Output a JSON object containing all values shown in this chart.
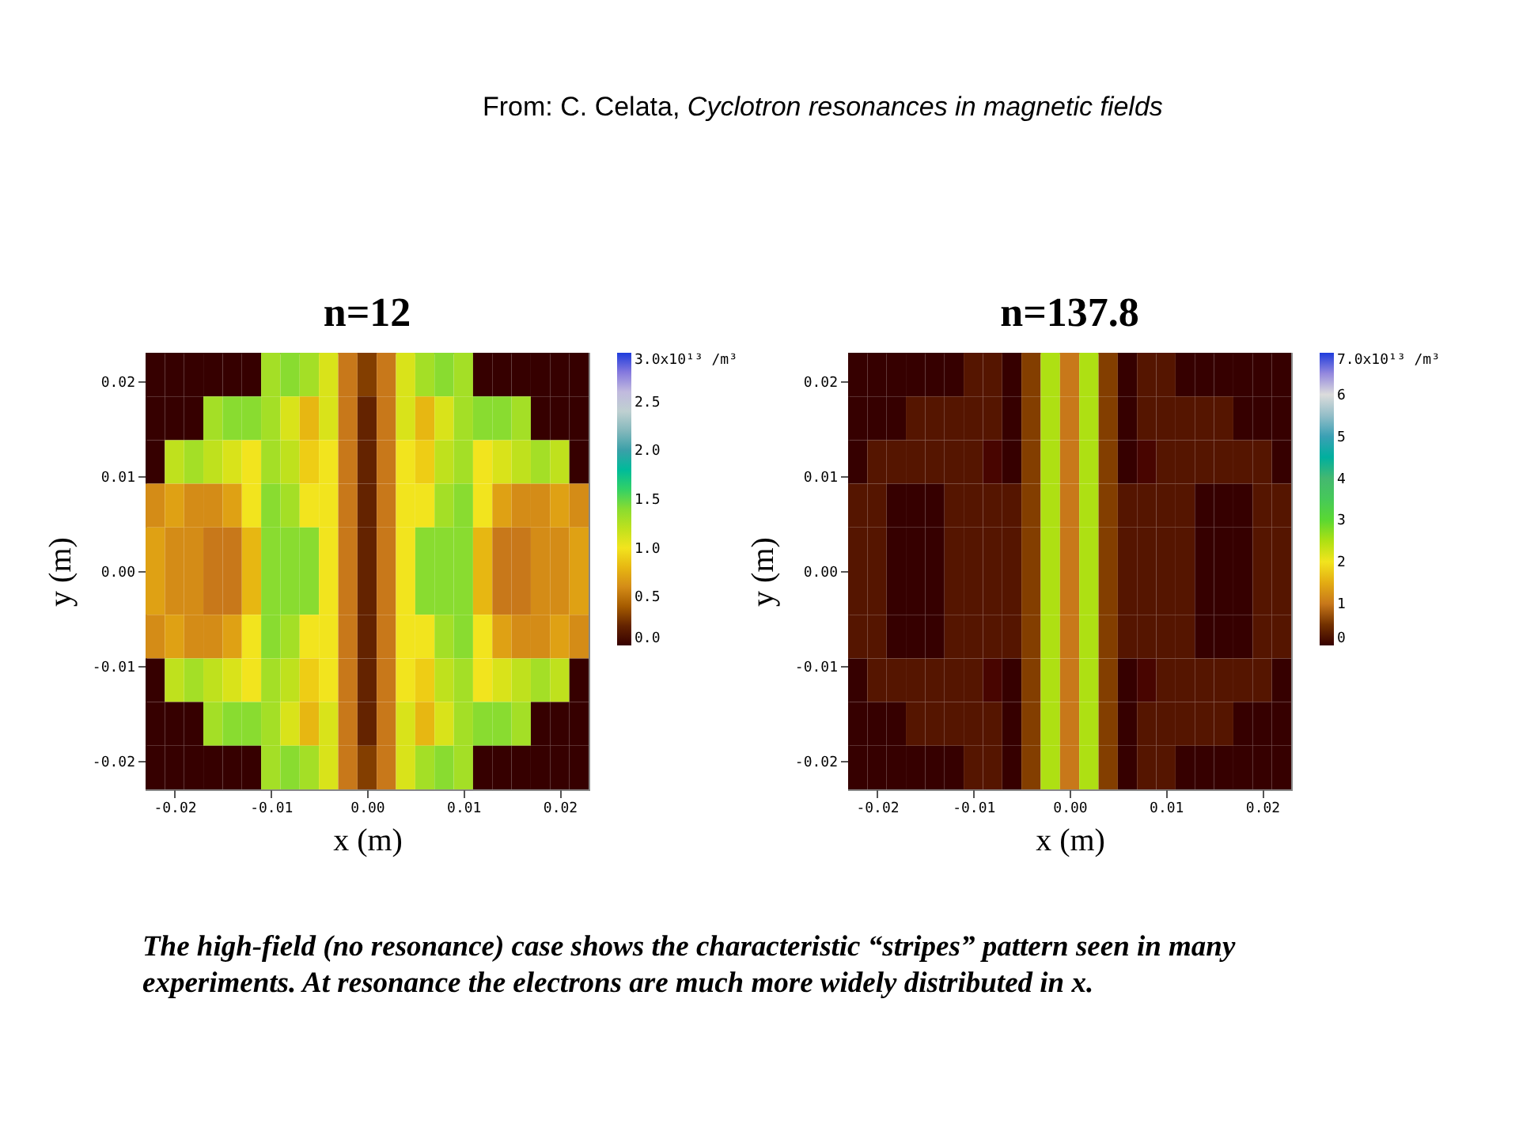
{
  "chart_data": [
    {
      "type": "heatmap",
      "title": "n=12",
      "xlabel": "x (m)",
      "ylabel": "y (m)",
      "annotations": [
        "From: C. Celata,",
        "Cyclotron resonances in magnetic fields",
        "The high-field (no resonance) case shows the characteristic “stripes” pattern seen in many experiments. At resonance the electrons are much more widely distributed in x."
      ],
      "xlim": [
        -0.023,
        0.023
      ],
      "ylim": [
        -0.023,
        0.023
      ],
      "xticks": [
        -0.02,
        -0.01,
        {
          "value": 0,
          "label": "0.00"
        },
        0.01,
        0.02
      ],
      "yticks": [
        -0.02,
        -0.01,
        {
          "value": 0,
          "label": "0.00"
        },
        0.01,
        0.02
      ],
      "clim": [
        0,
        3
      ],
      "cticks": [
        {
          "value": 0,
          "label": "0.0"
        },
        0.5,
        {
          "value": 1,
          "label": "1.0"
        },
        1.5,
        {
          "value": 2,
          "label": "2.0"
        },
        2.5,
        {
          "value": 3,
          "label": "3.0x10¹³ /m³"
        }
      ],
      "colors": [
        "#000000",
        "#c8781a",
        "#f2e41e",
        "#6ad83c",
        "#3aa0a8",
        "#dcdcdc",
        "#1e3cdc"
      ],
      "cells": [
        [
          0,
          0,
          0,
          0,
          0,
          0,
          1.3,
          1.4,
          1.3,
          1.1,
          0.5,
          0.3,
          0.5,
          1.1,
          1.3,
          1.4,
          1.3,
          0,
          0,
          0,
          0,
          0,
          0
        ],
        [
          0,
          0,
          0,
          1.3,
          1.4,
          1.4,
          1.3,
          1.1,
          0.8,
          1.1,
          0.5,
          0.2,
          0.5,
          1.1,
          0.8,
          1.1,
          1.3,
          1.4,
          1.4,
          1.3,
          0,
          0,
          0
        ],
        [
          0,
          1.2,
          1.3,
          1.2,
          1.1,
          1.0,
          1.3,
          1.2,
          0.9,
          1.0,
          0.5,
          0.2,
          0.5,
          1.0,
          0.9,
          1.2,
          1.3,
          1.0,
          1.1,
          1.2,
          1.3,
          1.2,
          0
        ],
        [
          0.6,
          0.7,
          0.6,
          0.6,
          0.7,
          1.0,
          1.4,
          1.3,
          1.0,
          1.0,
          0.5,
          0.2,
          0.5,
          1.0,
          1.0,
          1.3,
          1.4,
          1.0,
          0.7,
          0.6,
          0.6,
          0.7,
          0.6
        ],
        [
          0.7,
          0.6,
          0.6,
          0.5,
          0.5,
          0.8,
          1.4,
          1.4,
          1.4,
          1.0,
          0.5,
          0.2,
          0.5,
          1.0,
          1.4,
          1.4,
          1.4,
          0.8,
          0.5,
          0.5,
          0.6,
          0.6,
          0.7
        ],
        [
          0.7,
          0.6,
          0.6,
          0.5,
          0.5,
          0.8,
          1.4,
          1.4,
          1.4,
          1.0,
          0.5,
          0.2,
          0.5,
          1.0,
          1.4,
          1.4,
          1.4,
          0.8,
          0.5,
          0.5,
          0.6,
          0.6,
          0.7
        ],
        [
          0.6,
          0.7,
          0.6,
          0.6,
          0.7,
          1.0,
          1.4,
          1.3,
          1.0,
          1.0,
          0.5,
          0.2,
          0.5,
          1.0,
          1.0,
          1.3,
          1.4,
          1.0,
          0.7,
          0.6,
          0.6,
          0.7,
          0.6
        ],
        [
          0,
          1.2,
          1.3,
          1.2,
          1.1,
          1.0,
          1.3,
          1.2,
          0.9,
          1.0,
          0.5,
          0.2,
          0.5,
          1.0,
          0.9,
          1.2,
          1.3,
          1.0,
          1.1,
          1.2,
          1.3,
          1.2,
          0
        ],
        [
          0,
          0,
          0,
          1.3,
          1.4,
          1.4,
          1.3,
          1.1,
          0.8,
          1.1,
          0.5,
          0.2,
          0.5,
          1.1,
          0.8,
          1.1,
          1.3,
          1.4,
          1.4,
          1.3,
          0,
          0,
          0
        ],
        [
          0,
          0,
          0,
          0,
          0,
          0,
          1.3,
          1.4,
          1.3,
          1.1,
          0.5,
          0.3,
          0.5,
          1.1,
          1.3,
          1.4,
          1.3,
          0,
          0,
          0,
          0,
          0,
          0
        ]
      ]
    },
    {
      "type": "heatmap",
      "title": "n=137.8",
      "xlabel": "x (m)",
      "ylabel": "y (m)",
      "xlim": [
        -0.023,
        0.023
      ],
      "ylim": [
        -0.023,
        0.023
      ],
      "xticks": [
        -0.02,
        -0.01,
        {
          "value": 0,
          "label": "0.00"
        },
        0.01,
        0.02
      ],
      "yticks": [
        -0.02,
        -0.01,
        {
          "value": 0,
          "label": "0.00"
        },
        0.01,
        0.02
      ],
      "clim": [
        0,
        7
      ],
      "cticks": [
        0,
        1,
        2,
        3,
        4,
        5,
        6,
        {
          "value": 7,
          "label": "7.0x10¹³ /m³"
        }
      ],
      "colors": [
        "#000000",
        "#c8781a",
        "#f2e41e",
        "#5ad832",
        "#44b870",
        "#3aa0b4",
        "#dcdcdc",
        "#1e3cdc"
      ],
      "cells": [
        [
          0,
          0,
          0,
          0,
          0,
          0,
          0.3,
          0.3,
          0,
          0.6,
          2.5,
          1.0,
          2.5,
          0.6,
          0,
          0.3,
          0.3,
          0,
          0,
          0,
          0,
          0,
          0
        ],
        [
          0,
          0,
          0,
          0.3,
          0.3,
          0.3,
          0.3,
          0.3,
          0,
          0.6,
          2.5,
          1.0,
          2.5,
          0.6,
          0,
          0.3,
          0.3,
          0.3,
          0.3,
          0.3,
          0,
          0,
          0
        ],
        [
          0,
          0.3,
          0.3,
          0.3,
          0.3,
          0.3,
          0.3,
          0.2,
          0,
          0.6,
          2.5,
          1.0,
          2.5,
          0.6,
          0,
          0.2,
          0.3,
          0.3,
          0.3,
          0.3,
          0.3,
          0.3,
          0
        ],
        [
          0.3,
          0.3,
          0,
          0,
          0,
          0.3,
          0.3,
          0.3,
          0.3,
          0.6,
          2.5,
          1.0,
          2.5,
          0.6,
          0.3,
          0.3,
          0.3,
          0.3,
          0,
          0,
          0,
          0.3,
          0.3
        ],
        [
          0.3,
          0.3,
          0,
          0,
          0,
          0.3,
          0.3,
          0.3,
          0.3,
          0.6,
          2.5,
          1.0,
          2.5,
          0.6,
          0.3,
          0.3,
          0.3,
          0.3,
          0,
          0,
          0,
          0.3,
          0.3
        ],
        [
          0.3,
          0.3,
          0,
          0,
          0,
          0.3,
          0.3,
          0.3,
          0.3,
          0.6,
          2.5,
          1.0,
          2.5,
          0.6,
          0.3,
          0.3,
          0.3,
          0.3,
          0,
          0,
          0,
          0.3,
          0.3
        ],
        [
          0.3,
          0.3,
          0,
          0,
          0,
          0.3,
          0.3,
          0.3,
          0.3,
          0.6,
          2.5,
          1.0,
          2.5,
          0.6,
          0.3,
          0.3,
          0.3,
          0.3,
          0,
          0,
          0,
          0.3,
          0.3
        ],
        [
          0,
          0.3,
          0.3,
          0.3,
          0.3,
          0.3,
          0.3,
          0.2,
          0,
          0.6,
          2.5,
          1.0,
          2.5,
          0.6,
          0,
          0.2,
          0.3,
          0.3,
          0.3,
          0.3,
          0.3,
          0.3,
          0
        ],
        [
          0,
          0,
          0,
          0.3,
          0.3,
          0.3,
          0.3,
          0.3,
          0,
          0.6,
          2.5,
          1.0,
          2.5,
          0.6,
          0,
          0.3,
          0.3,
          0.3,
          0.3,
          0.3,
          0,
          0,
          0
        ],
        [
          0,
          0,
          0,
          0,
          0,
          0,
          0.3,
          0.3,
          0,
          0.6,
          2.5,
          1.0,
          2.5,
          0.6,
          0,
          0.3,
          0.3,
          0,
          0,
          0,
          0,
          0,
          0
        ]
      ]
    }
  ]
}
